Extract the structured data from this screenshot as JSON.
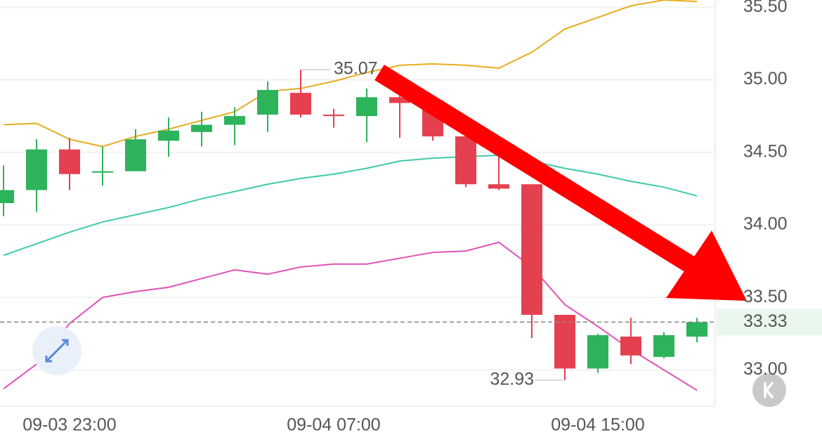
{
  "chart_data": {
    "type": "candlestick",
    "categories": [
      null,
      null,
      "09-03 23:00",
      null,
      null,
      null,
      null,
      null,
      null,
      null,
      "09-04 07:00",
      null,
      null,
      null,
      null,
      null,
      null,
      null,
      "09-04 15:00",
      null,
      null,
      null
    ],
    "open": [
      34.15,
      34.24,
      34.52,
      34.36,
      34.37,
      34.58,
      34.64,
      34.69,
      34.76,
      34.91,
      34.76,
      34.75,
      34.88,
      34.86,
      34.61,
      34.28,
      34.28,
      33.38,
      33.01,
      33.23,
      33.09,
      33.23
    ],
    "high": [
      34.41,
      34.59,
      34.6,
      34.54,
      34.66,
      34.74,
      34.78,
      34.81,
      34.99,
      35.07,
      34.8,
      34.94,
      35.03,
      34.86,
      34.61,
      34.48,
      34.28,
      33.38,
      33.25,
      33.36,
      33.26,
      33.36
    ],
    "low": [
      34.06,
      34.09,
      34.24,
      34.27,
      34.37,
      34.47,
      34.54,
      34.55,
      34.64,
      34.74,
      34.67,
      34.57,
      34.6,
      34.58,
      34.26,
      34.24,
      33.22,
      32.93,
      32.98,
      33.04,
      33.08,
      33.19
    ],
    "close": [
      34.24,
      34.52,
      34.35,
      34.37,
      34.59,
      34.65,
      34.69,
      34.75,
      34.93,
      34.76,
      34.75,
      34.88,
      34.84,
      34.61,
      34.28,
      34.25,
      33.38,
      33.01,
      33.24,
      33.1,
      33.24,
      33.33
    ],
    "up_color": "#2db35a",
    "down_color": "#e5404f",
    "lines": [
      {
        "color": "#e8ac1e",
        "values": [
          34.69,
          34.7,
          34.59,
          34.54,
          34.61,
          34.66,
          34.72,
          34.78,
          34.92,
          34.94,
          34.99,
          35.05,
          35.1,
          35.11,
          35.1,
          35.08,
          35.19,
          35.35,
          35.43,
          35.51,
          35.55,
          35.54
        ]
      },
      {
        "color": "#3ecba6",
        "values": [
          33.79,
          33.87,
          33.95,
          34.02,
          34.07,
          34.12,
          34.18,
          34.23,
          34.28,
          34.32,
          34.35,
          34.39,
          34.44,
          34.46,
          34.47,
          34.48,
          34.44,
          34.39,
          34.35,
          34.3,
          34.26,
          34.2
        ]
      },
      {
        "color": "#e052b8",
        "values": [
          32.87,
          33.04,
          33.32,
          33.5,
          33.54,
          33.57,
          33.63,
          33.69,
          33.66,
          33.71,
          33.73,
          33.73,
          33.77,
          33.81,
          33.82,
          33.88,
          33.71,
          33.45,
          33.3,
          33.14,
          33.0,
          32.86
        ]
      }
    ],
    "high_label": 35.07,
    "low_label": 32.93,
    "last_price": 33.33,
    "ylim": [
      32.75,
      35.55
    ],
    "yticks": [
      {
        "value": 33,
        "label": "33.00"
      },
      {
        "value": 33.5,
        "label": "33.50"
      },
      {
        "value": 34,
        "label": "34.00"
      },
      {
        "value": 34.5,
        "label": "34.50"
      },
      {
        "value": 35,
        "label": "35.00"
      },
      {
        "value": 35.5,
        "label": "35.50"
      }
    ],
    "grid": true
  }
}
